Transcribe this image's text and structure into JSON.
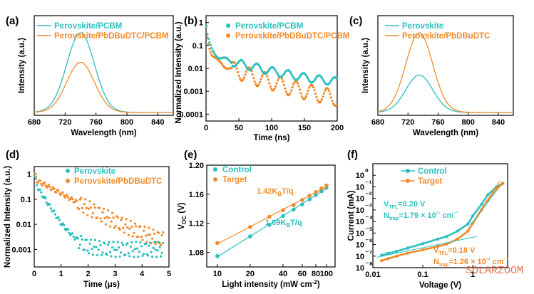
{
  "colors": {
    "cyan": "#2BBFBF",
    "orange": "#F08A2A",
    "watermark": "#E05A2A"
  },
  "watermark": "SOLARZOOM",
  "chart_data": [
    {
      "panel": "(a)",
      "type": "line",
      "xlabel": "Wavelength (nm)",
      "ylabel": "Intensity (a.u.)",
      "xlim": [
        680,
        860
      ],
      "xticks": [
        "680",
        "720",
        "760",
        "800",
        "840"
      ],
      "legend_position": "top-left",
      "series": [
        {
          "name": "Perovskite/PCBM",
          "color": "#2BBFBF",
          "peak_x": 740,
          "peak_y": 1.0,
          "width": 18
        },
        {
          "name": "Perovskite/PbDBuDTC/PCBM",
          "color": "#F08A2A",
          "peak_x": 740,
          "peak_y": 0.63,
          "width": 18
        }
      ]
    },
    {
      "panel": "(b)",
      "type": "scatter",
      "xlabel": "Time (ns)",
      "ylabel": "Normalized Intensity (a.u.)",
      "xlim": [
        0,
        200
      ],
      "yscale": "log",
      "ylim": [
        5e-05,
        2
      ],
      "xticks": [
        "0",
        "50",
        "100",
        "150",
        "200"
      ],
      "yticks": [
        "1",
        "0.1",
        "0.01",
        "0.001",
        "0.0001"
      ],
      "legend_position": "top-right",
      "series": [
        {
          "name": "Perovskite/PCBM",
          "color": "#2BBFBF",
          "x": [
            0,
            1,
            2,
            3,
            5,
            8,
            10,
            15,
            20,
            30,
            40,
            50,
            75,
            100,
            125,
            150,
            175,
            200
          ],
          "y": [
            1,
            0.5,
            0.3,
            0.2,
            0.12,
            0.07,
            0.055,
            0.04,
            0.032,
            0.024,
            0.019,
            0.016,
            0.011,
            0.0075,
            0.0055,
            0.004,
            0.0032,
            0.0026
          ]
        },
        {
          "name": "Perovskite/PbDBuDTC/PCBM",
          "color": "#F08A2A",
          "x": [
            0,
            1,
            2,
            3,
            5,
            8,
            10,
            15,
            20,
            30,
            40,
            50,
            75,
            100,
            125,
            150,
            175,
            200
          ],
          "y": [
            1,
            0.45,
            0.25,
            0.16,
            0.09,
            0.05,
            0.038,
            0.025,
            0.018,
            0.012,
            0.009,
            0.007,
            0.004,
            0.0025,
            0.0015,
            0.001,
            0.0007,
            0.0005
          ]
        }
      ]
    },
    {
      "panel": "(c)",
      "type": "line",
      "xlabel": "Wavelength (nm)",
      "ylabel": "Intensity (a.u.)",
      "xlim": [
        680,
        860
      ],
      "xticks": [
        "680",
        "720",
        "760",
        "800",
        "840"
      ],
      "legend_position": "top-right",
      "series": [
        {
          "name": "Perovskite",
          "color": "#2BBFBF",
          "peak_x": 735,
          "peak_y": 0.47,
          "width": 18
        },
        {
          "name": "Perovskite/PbDBuDTC",
          "color": "#F08A2A",
          "peak_x": 735,
          "peak_y": 1.0,
          "width": 18
        }
      ]
    },
    {
      "panel": "(d)",
      "type": "scatter",
      "xlabel": "Time (μs)",
      "ylabel": "Normalized Intensity (a.u.)",
      "xlim": [
        0,
        5
      ],
      "yscale": "log",
      "ylim": [
        0.0002,
        2
      ],
      "xticks": [
        "0",
        "1",
        "2",
        "3",
        "4",
        "5"
      ],
      "yticks": [
        "1",
        "0.1",
        "0.01",
        "0.001"
      ],
      "legend_position": "top-right",
      "series": [
        {
          "name": "Perovskite",
          "color": "#2BBFBF",
          "x": [
            0,
            0.1,
            0.25,
            0.5,
            0.75,
            1,
            1.25,
            1.5,
            1.75,
            2,
            2.5,
            3,
            3.5,
            4,
            4.5,
            4.8
          ],
          "y": [
            1,
            0.35,
            0.18,
            0.07,
            0.028,
            0.011,
            0.0055,
            0.003,
            0.0018,
            0.0013,
            0.0011,
            0.001,
            0.001,
            0.001,
            0.001,
            0.001
          ]
        },
        {
          "name": "Perovskite/PbDBuDTC",
          "color": "#F08A2A",
          "x": [
            0,
            0.1,
            0.25,
            0.5,
            1,
            1.5,
            2,
            2.5,
            3,
            3.5,
            4,
            4.5,
            4.8
          ],
          "y": [
            1,
            0.55,
            0.45,
            0.33,
            0.17,
            0.085,
            0.045,
            0.024,
            0.013,
            0.0075,
            0.0045,
            0.003,
            0.0025
          ]
        }
      ]
    },
    {
      "panel": "(e)",
      "type": "scatter",
      "xlabel": "Light intensity (mW cm⁻²)",
      "ylabel": "VOC (V)",
      "xscale": "log",
      "xlim": [
        8,
        120
      ],
      "ylim": [
        1.06,
        1.2
      ],
      "xticks": [
        "10",
        "20",
        "40",
        "60",
        "80",
        "100"
      ],
      "yticks": [
        "1.08",
        "1.12",
        "1.16",
        "1.20"
      ],
      "legend_position": "top-left",
      "annotations": [
        "1.42KBT/q",
        "1.69KBT/q"
      ],
      "series": [
        {
          "name": "Control",
          "color": "#2BBFBF",
          "x": [
            10,
            20,
            30,
            40,
            50,
            60,
            70,
            80,
            90,
            100
          ],
          "y": [
            1.075,
            1.102,
            1.118,
            1.13,
            1.139,
            1.146,
            1.153,
            1.159,
            1.164,
            1.169
          ]
        },
        {
          "name": "Target",
          "color": "#F08A2A",
          "x": [
            10,
            20,
            30,
            40,
            50,
            60,
            70,
            80,
            90,
            100
          ],
          "y": [
            1.093,
            1.115,
            1.129,
            1.138,
            1.145,
            1.152,
            1.158,
            1.163,
            1.168,
            1.172
          ]
        }
      ]
    },
    {
      "panel": "(f)",
      "type": "line",
      "xlabel": "Voltage (V)",
      "ylabel": "Current (mA)",
      "xscale": "log",
      "yscale": "log",
      "xlim": [
        0.01,
        5
      ],
      "ylim": [
        1e-08,
        10
      ],
      "xticks": [
        "0.01",
        "0.1",
        "1"
      ],
      "yticks": [
        "10⁰",
        "10⁻¹",
        "10⁻²",
        "10⁻³",
        "10⁻⁴",
        "10⁻⁵",
        "10⁻⁶",
        "10⁻⁷",
        "10⁻⁸"
      ],
      "legend_position": "top-center",
      "annotations": [
        "VTFL=0.20 V",
        "Ntrap=1.79 × 10¹⁵ cm⁻³",
        "VTFL=0.18 V",
        "Ntrap=1.26 × 10¹⁴ cm⁻³"
      ],
      "series": [
        {
          "name": "Control",
          "color": "#2BBFBF",
          "x": [
            0.015,
            0.02,
            0.03,
            0.05,
            0.1,
            0.2,
            0.3,
            0.5,
            0.8,
            1,
            1.5,
            2,
            3,
            4
          ],
          "y": [
            1.2e-07,
            1.7e-07,
            2.6e-07,
            5e-07,
            1.2e-06,
            3e-06,
            5e-06,
            1.5e-05,
            6e-05,
            0.0003,
            0.003,
            0.02,
            0.1,
            0.2
          ]
        },
        {
          "name": "Target",
          "color": "#F08A2A",
          "x": [
            0.015,
            0.02,
            0.03,
            0.05,
            0.1,
            0.2,
            0.3,
            0.5,
            0.8,
            1,
            1.5,
            2,
            3,
            4
          ],
          "y": [
            4e-08,
            6e-08,
            1e-07,
            1.8e-07,
            3.5e-07,
            7e-07,
            1.1e-06,
            3e-06,
            1.5e-05,
            7e-05,
            0.001,
            0.006,
            0.06,
            0.2
          ]
        }
      ]
    }
  ]
}
